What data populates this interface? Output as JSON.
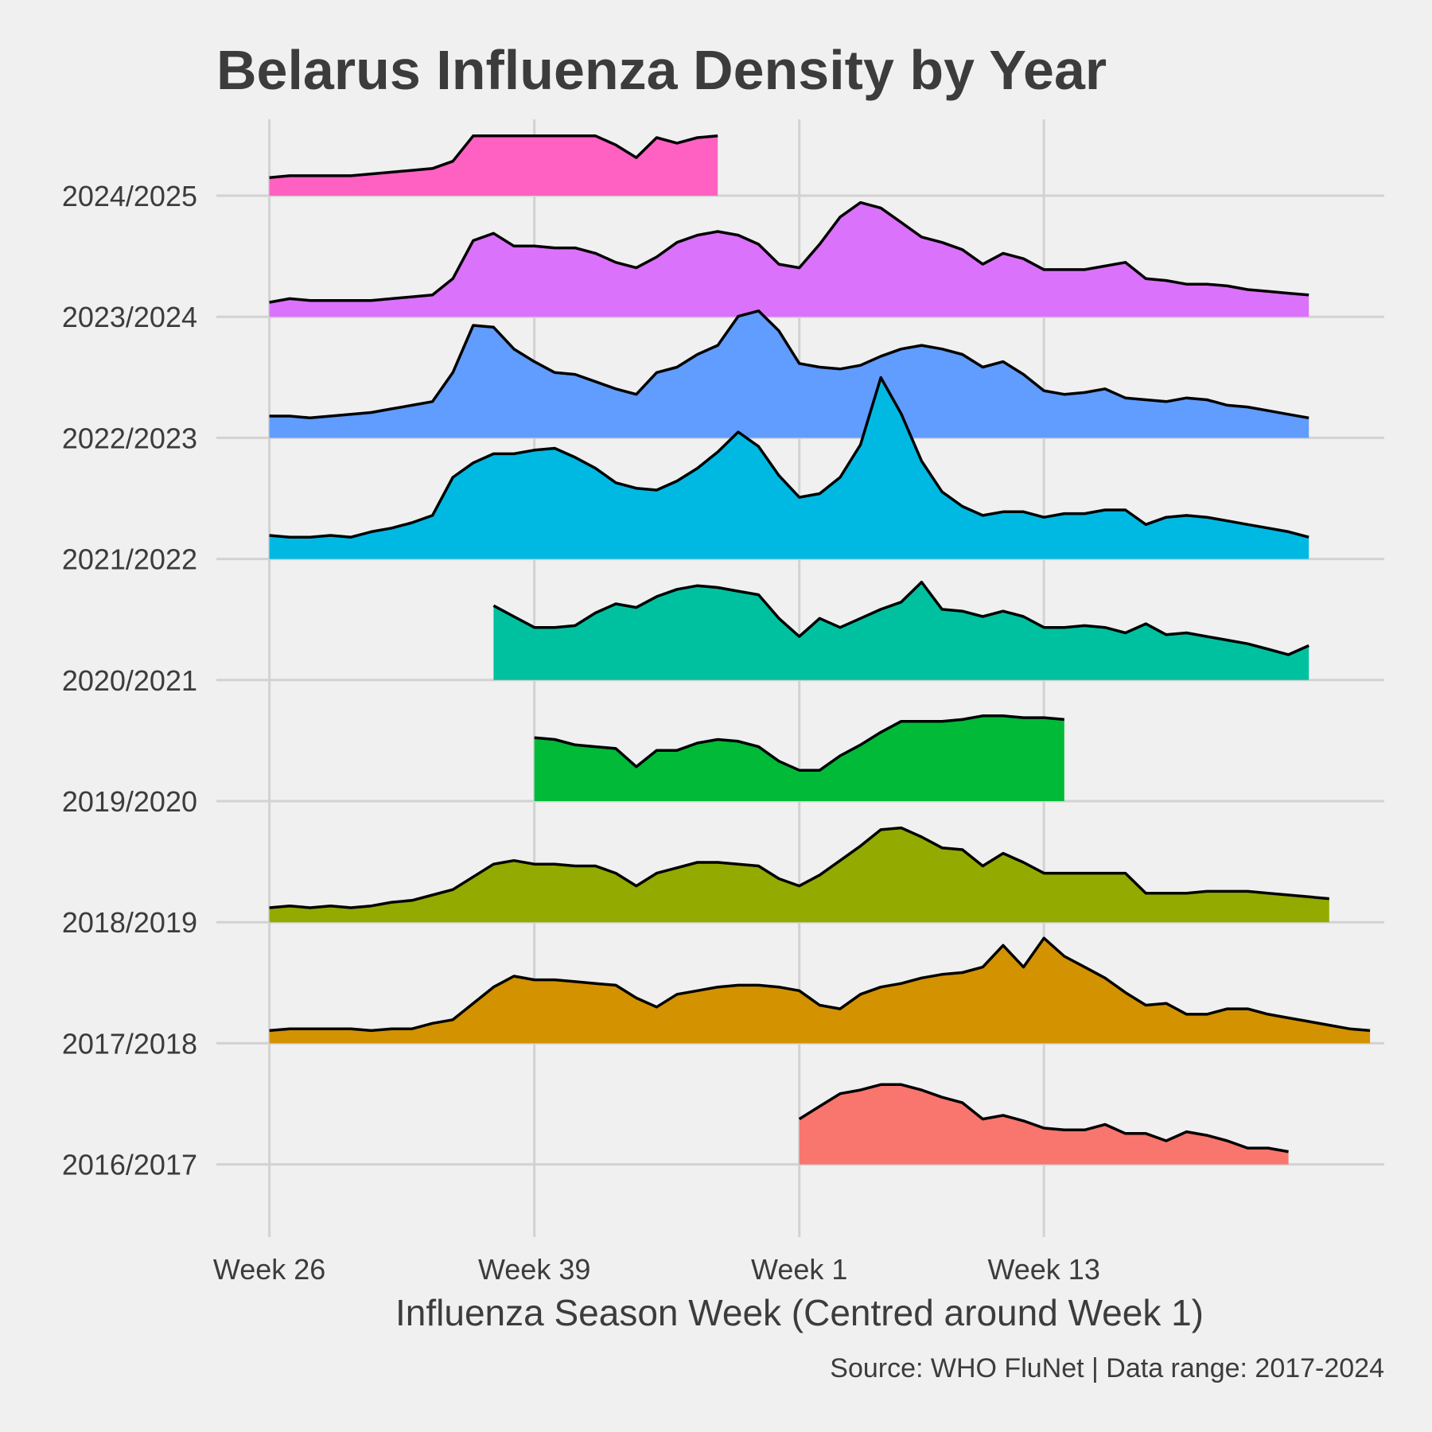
{
  "chart_data": {
    "type": "area",
    "subtype": "ridgeline",
    "title": "Belarus Influenza Density by Year",
    "xlabel": "Influenza Season Week (Centred around Week 1)",
    "ylabel": "",
    "caption": "Source: WHO FluNet | Data range: 2017-2024",
    "x_unit": "season week index (0 = Week 26, 13 = Week 39, 26 = Week 1, 38 = Week 13)",
    "x_ticks": [
      {
        "x": 0,
        "label": "Week 26"
      },
      {
        "x": 13,
        "label": "Week 39"
      },
      {
        "x": 26,
        "label": "Week 1"
      },
      {
        "x": 38,
        "label": "Week 13"
      }
    ],
    "xlim": [
      -2.6,
      54.7
    ],
    "grid": true,
    "legend": "none",
    "line_color": "#000000",
    "series": [
      {
        "name": "2016/2017",
        "color": "#F8766D",
        "x_start": 26,
        "values": [
          0.25,
          0.32,
          0.39,
          0.41,
          0.44,
          0.44,
          0.41,
          0.37,
          0.34,
          0.25,
          0.27,
          0.24,
          0.2,
          0.19,
          0.19,
          0.22,
          0.17,
          0.17,
          0.13,
          0.18,
          0.16,
          0.13,
          0.09,
          0.09,
          0.07
        ]
      },
      {
        "name": "2017/2018",
        "color": "#D39200",
        "x_start": 0,
        "values": [
          0.07,
          0.08,
          0.08,
          0.08,
          0.08,
          0.07,
          0.08,
          0.08,
          0.11,
          0.13,
          0.22,
          0.31,
          0.37,
          0.35,
          0.35,
          0.34,
          0.33,
          0.32,
          0.25,
          0.2,
          0.27,
          0.29,
          0.31,
          0.32,
          0.32,
          0.31,
          0.29,
          0.21,
          0.19,
          0.27,
          0.31,
          0.33,
          0.36,
          0.38,
          0.39,
          0.42,
          0.54,
          0.42,
          0.58,
          0.48,
          0.42,
          0.36,
          0.28,
          0.21,
          0.22,
          0.16,
          0.16,
          0.19,
          0.19,
          0.16,
          0.14,
          0.12,
          0.1,
          0.08,
          0.07
        ]
      },
      {
        "name": "2018/2019",
        "color": "#93AA00",
        "x_start": 0,
        "values": [
          0.08,
          0.09,
          0.08,
          0.09,
          0.08,
          0.09,
          0.11,
          0.12,
          0.15,
          0.18,
          0.25,
          0.32,
          0.34,
          0.32,
          0.32,
          0.31,
          0.31,
          0.27,
          0.2,
          0.27,
          0.3,
          0.33,
          0.33,
          0.32,
          0.31,
          0.24,
          0.2,
          0.26,
          0.34,
          0.42,
          0.51,
          0.52,
          0.47,
          0.41,
          0.4,
          0.31,
          0.38,
          0.33,
          0.27,
          0.27,
          0.27,
          0.27,
          0.27,
          0.16,
          0.16,
          0.16,
          0.17,
          0.17,
          0.17,
          0.16,
          0.15,
          0.14,
          0.13
        ]
      },
      {
        "name": "2019/2020",
        "color": "#00BA38",
        "x_start": 13,
        "values": [
          0.35,
          0.34,
          0.31,
          0.3,
          0.29,
          0.19,
          0.28,
          0.28,
          0.32,
          0.34,
          0.33,
          0.3,
          0.22,
          0.17,
          0.17,
          0.25,
          0.31,
          0.38,
          0.44,
          0.44,
          0.44,
          0.45,
          0.47,
          0.47,
          0.46,
          0.46,
          0.45
        ]
      },
      {
        "name": "2020/2021",
        "color": "#00C19F",
        "x_start": 11,
        "values": [
          0.41,
          0.35,
          0.29,
          0.29,
          0.3,
          0.37,
          0.42,
          0.4,
          0.46,
          0.5,
          0.52,
          0.51,
          0.49,
          0.47,
          0.34,
          0.24,
          0.34,
          0.29,
          0.34,
          0.39,
          0.43,
          0.54,
          0.39,
          0.38,
          0.35,
          0.38,
          0.35,
          0.29,
          0.29,
          0.3,
          0.29,
          0.26,
          0.31,
          0.25,
          0.26,
          0.24,
          0.22,
          0.2,
          0.17,
          0.14,
          0.19
        ]
      },
      {
        "name": "2021/2022",
        "color": "#00B9E3",
        "x_start": 0,
        "values": [
          0.13,
          0.12,
          0.12,
          0.13,
          0.12,
          0.15,
          0.17,
          0.2,
          0.24,
          0.45,
          0.53,
          0.58,
          0.58,
          0.6,
          0.61,
          0.56,
          0.5,
          0.42,
          0.39,
          0.38,
          0.43,
          0.5,
          0.59,
          0.7,
          0.62,
          0.46,
          0.34,
          0.36,
          0.45,
          0.63,
          1.0,
          0.8,
          0.54,
          0.37,
          0.29,
          0.24,
          0.26,
          0.26,
          0.23,
          0.25,
          0.25,
          0.27,
          0.27,
          0.19,
          0.23,
          0.24,
          0.23,
          0.21,
          0.19,
          0.17,
          0.15,
          0.12
        ]
      },
      {
        "name": "2022/2023",
        "color": "#619CFF",
        "x_start": 0,
        "values": [
          0.12,
          0.12,
          0.11,
          0.12,
          0.13,
          0.14,
          0.16,
          0.18,
          0.2,
          0.36,
          0.62,
          0.61,
          0.49,
          0.42,
          0.36,
          0.35,
          0.31,
          0.27,
          0.24,
          0.36,
          0.39,
          0.46,
          0.51,
          0.67,
          0.7,
          0.59,
          0.41,
          0.39,
          0.38,
          0.4,
          0.45,
          0.49,
          0.51,
          0.49,
          0.46,
          0.39,
          0.42,
          0.35,
          0.26,
          0.24,
          0.25,
          0.27,
          0.22,
          0.21,
          0.2,
          0.22,
          0.21,
          0.18,
          0.17,
          0.15,
          0.13,
          0.11
        ]
      },
      {
        "name": "2023/2024",
        "color": "#DB72FB",
        "x_start": 0,
        "values": [
          0.08,
          0.1,
          0.09,
          0.09,
          0.09,
          0.09,
          0.1,
          0.11,
          0.12,
          0.21,
          0.42,
          0.46,
          0.39,
          0.39,
          0.38,
          0.38,
          0.35,
          0.3,
          0.27,
          0.33,
          0.41,
          0.45,
          0.47,
          0.45,
          0.4,
          0.29,
          0.27,
          0.4,
          0.55,
          0.63,
          0.6,
          0.52,
          0.44,
          0.41,
          0.37,
          0.29,
          0.35,
          0.32,
          0.26,
          0.26,
          0.26,
          0.28,
          0.3,
          0.21,
          0.2,
          0.18,
          0.18,
          0.17,
          0.15,
          0.14,
          0.13,
          0.12
        ]
      },
      {
        "name": "2024/2025",
        "color": "#FF61C3",
        "x_start": 0,
        "values": [
          0.1,
          0.11,
          0.11,
          0.11,
          0.11,
          0.12,
          0.13,
          0.14,
          0.15,
          0.19,
          0.33,
          0.33,
          0.33,
          0.33,
          0.33,
          0.33,
          0.33,
          0.28,
          0.21,
          0.32,
          0.29,
          0.32,
          0.33
        ]
      }
    ]
  }
}
